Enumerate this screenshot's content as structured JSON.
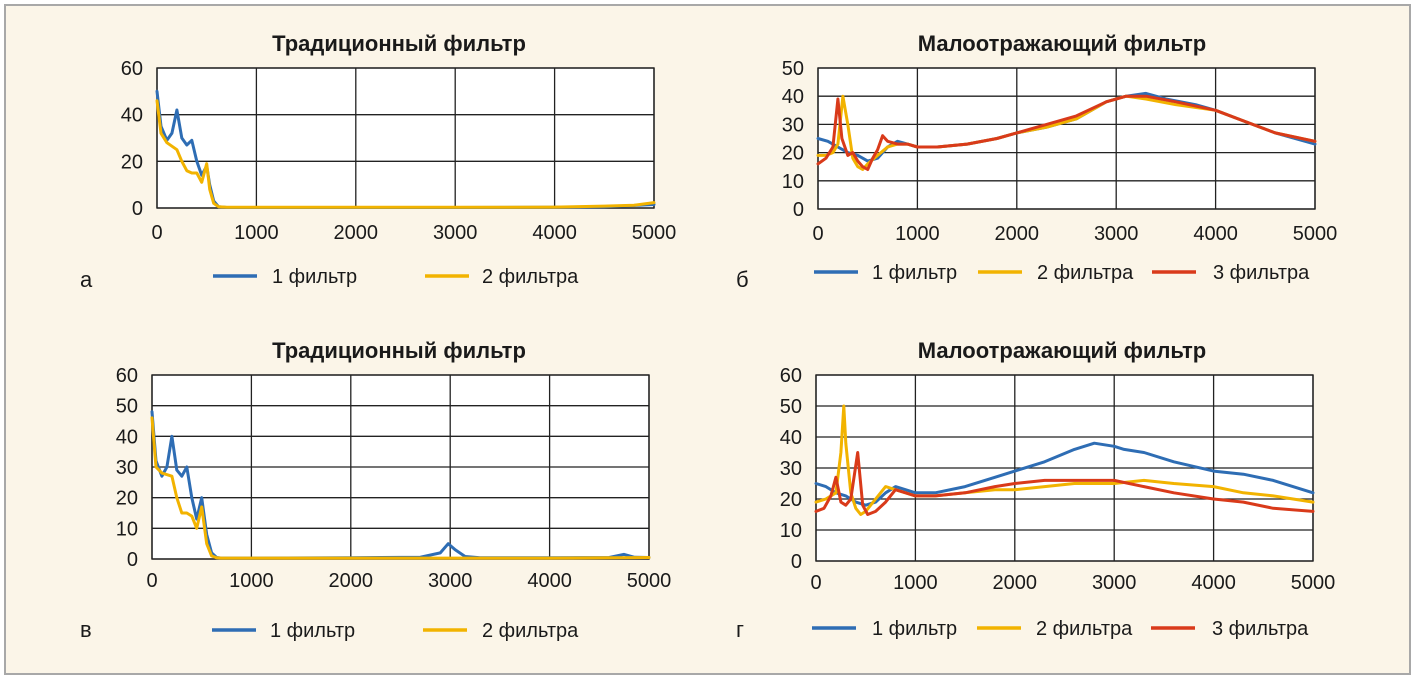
{
  "chart_data": [
    {
      "type": "line",
      "panel_letter": "а",
      "title": "Традиционный фильтр",
      "xlim": [
        0,
        5000
      ],
      "ylim": [
        0,
        60
      ],
      "xticks": [
        0,
        1000,
        2000,
        3000,
        4000,
        5000
      ],
      "yticks": [
        0,
        20,
        40,
        60
      ],
      "legend_position": "bottom",
      "series": [
        {
          "name": "1 фильтр",
          "color": "#2e6db4",
          "points": [
            [
              0,
              50
            ],
            [
              40,
              35
            ],
            [
              100,
              29
            ],
            [
              150,
              32
            ],
            [
              200,
              42
            ],
            [
              250,
              30
            ],
            [
              300,
              27
            ],
            [
              350,
              29
            ],
            [
              400,
              20
            ],
            [
              450,
              14
            ],
            [
              500,
              18
            ],
            [
              530,
              10
            ],
            [
              570,
              3
            ],
            [
              620,
              0.5
            ],
            [
              700,
              0.2
            ],
            [
              1000,
              0.2
            ],
            [
              2000,
              0.2
            ],
            [
              3000,
              0.2
            ],
            [
              4000,
              0.3
            ],
            [
              4500,
              0.5
            ],
            [
              5000,
              1.5
            ]
          ]
        },
        {
          "name": "2 фильтра",
          "color": "#f2b300",
          "points": [
            [
              0,
              46
            ],
            [
              40,
              32
            ],
            [
              100,
              28
            ],
            [
              200,
              25
            ],
            [
              250,
              20
            ],
            [
              300,
              16
            ],
            [
              350,
              15
            ],
            [
              400,
              15
            ],
            [
              450,
              11
            ],
            [
              500,
              19
            ],
            [
              530,
              8
            ],
            [
              570,
              2
            ],
            [
              620,
              0.5
            ],
            [
              700,
              0.3
            ],
            [
              1000,
              0.3
            ],
            [
              2000,
              0.3
            ],
            [
              3000,
              0.3
            ],
            [
              4000,
              0.4
            ],
            [
              4500,
              0.8
            ],
            [
              4800,
              1.2
            ],
            [
              5000,
              2.3
            ]
          ]
        }
      ]
    },
    {
      "type": "line",
      "panel_letter": "б",
      "title": "Малоотражающий фильтр",
      "xlim": [
        0,
        5000
      ],
      "ylim": [
        0,
        50
      ],
      "xticks": [
        0,
        1000,
        2000,
        3000,
        4000,
        5000
      ],
      "yticks": [
        0,
        10,
        20,
        30,
        40,
        50
      ],
      "legend_position": "bottom",
      "series": [
        {
          "name": "1 фильтр",
          "color": "#2e6db4",
          "points": [
            [
              0,
              25
            ],
            [
              100,
              24
            ],
            [
              200,
              22
            ],
            [
              300,
              20
            ],
            [
              400,
              19
            ],
            [
              450,
              18
            ],
            [
              500,
              17
            ],
            [
              600,
              18
            ],
            [
              700,
              22
            ],
            [
              800,
              24
            ],
            [
              900,
              23
            ],
            [
              1000,
              22
            ],
            [
              1200,
              22
            ],
            [
              1500,
              23
            ],
            [
              1800,
              25
            ],
            [
              2000,
              27
            ],
            [
              2300,
              29
            ],
            [
              2600,
              32
            ],
            [
              2900,
              38
            ],
            [
              3100,
              40
            ],
            [
              3300,
              41
            ],
            [
              3500,
              39
            ],
            [
              3800,
              37
            ],
            [
              4000,
              35
            ],
            [
              4300,
              31
            ],
            [
              4600,
              27
            ],
            [
              5000,
              23
            ]
          ]
        },
        {
          "name": "2 фильтра",
          "color": "#f2b300",
          "points": [
            [
              0,
              19
            ],
            [
              80,
              19
            ],
            [
              150,
              20
            ],
            [
              200,
              23
            ],
            [
              250,
              40
            ],
            [
              300,
              30
            ],
            [
              350,
              18
            ],
            [
              400,
              15
            ],
            [
              450,
              14
            ],
            [
              500,
              16
            ],
            [
              600,
              19
            ],
            [
              700,
              22
            ],
            [
              800,
              23
            ],
            [
              900,
              23
            ],
            [
              1000,
              22
            ],
            [
              1200,
              22
            ],
            [
              1500,
              23
            ],
            [
              1800,
              25
            ],
            [
              2000,
              27
            ],
            [
              2300,
              29
            ],
            [
              2600,
              32
            ],
            [
              2900,
              38
            ],
            [
              3100,
              40
            ],
            [
              3300,
              39
            ],
            [
              3600,
              37
            ],
            [
              4000,
              35
            ],
            [
              4300,
              31
            ],
            [
              4600,
              27
            ],
            [
              5000,
              24
            ]
          ]
        },
        {
          "name": "3 фильтра",
          "color": "#d93a1a",
          "points": [
            [
              0,
              16
            ],
            [
              80,
              18
            ],
            [
              150,
              22
            ],
            [
              200,
              39
            ],
            [
              240,
              25
            ],
            [
              300,
              19
            ],
            [
              350,
              20
            ],
            [
              400,
              17
            ],
            [
              450,
              15
            ],
            [
              500,
              14
            ],
            [
              550,
              18
            ],
            [
              600,
              21
            ],
            [
              650,
              26
            ],
            [
              700,
              24
            ],
            [
              800,
              23
            ],
            [
              900,
              23
            ],
            [
              1000,
              22
            ],
            [
              1200,
              22
            ],
            [
              1500,
              23
            ],
            [
              1800,
              25
            ],
            [
              2000,
              27
            ],
            [
              2300,
              30
            ],
            [
              2600,
              33
            ],
            [
              2900,
              38
            ],
            [
              3100,
              40
            ],
            [
              3300,
              40
            ],
            [
              3600,
              38
            ],
            [
              4000,
              35
            ],
            [
              4300,
              31
            ],
            [
              4600,
              27
            ],
            [
              5000,
              24
            ]
          ]
        }
      ]
    },
    {
      "type": "line",
      "panel_letter": "в",
      "title": "Традиционный фильтр",
      "xlim": [
        0,
        5000
      ],
      "ylim": [
        0,
        60
      ],
      "xticks": [
        0,
        1000,
        2000,
        3000,
        4000,
        5000
      ],
      "yticks": [
        0,
        10,
        20,
        30,
        40,
        50,
        60
      ],
      "legend_position": "bottom",
      "series": [
        {
          "name": "1 фильтр",
          "color": "#2e6db4",
          "points": [
            [
              0,
              48
            ],
            [
              40,
              32
            ],
            [
              100,
              27
            ],
            [
              150,
              30
            ],
            [
              200,
              40
            ],
            [
              250,
              29
            ],
            [
              300,
              27
            ],
            [
              350,
              30
            ],
            [
              400,
              20
            ],
            [
              450,
              13
            ],
            [
              500,
              20
            ],
            [
              550,
              8
            ],
            [
              600,
              2
            ],
            [
              650,
              0.5
            ],
            [
              700,
              0.3
            ],
            [
              1000,
              0.3
            ],
            [
              2000,
              0.4
            ],
            [
              2700,
              0.6
            ],
            [
              2900,
              2
            ],
            [
              2980,
              5
            ],
            [
              3050,
              3
            ],
            [
              3150,
              0.8
            ],
            [
              3300,
              0.4
            ],
            [
              4000,
              0.4
            ],
            [
              4600,
              0.5
            ],
            [
              4750,
              1.5
            ],
            [
              4850,
              0.6
            ],
            [
              5000,
              0.5
            ]
          ]
        },
        {
          "name": "2 фильтра",
          "color": "#f2b300",
          "points": [
            [
              0,
              46
            ],
            [
              40,
              30
            ],
            [
              100,
              28
            ],
            [
              200,
              27
            ],
            [
              250,
              20
            ],
            [
              300,
              15
            ],
            [
              350,
              15
            ],
            [
              400,
              14
            ],
            [
              450,
              10
            ],
            [
              500,
              17
            ],
            [
              550,
              5
            ],
            [
              600,
              1
            ],
            [
              650,
              0.4
            ],
            [
              700,
              0.3
            ],
            [
              1000,
              0.3
            ],
            [
              2000,
              0.3
            ],
            [
              3000,
              0.3
            ],
            [
              4000,
              0.3
            ],
            [
              5000,
              0.5
            ]
          ]
        }
      ]
    },
    {
      "type": "line",
      "panel_letter": "г",
      "title": "Малоотражающий фильтр",
      "xlim": [
        0,
        5000
      ],
      "ylim": [
        0,
        60
      ],
      "xticks": [
        0,
        1000,
        2000,
        3000,
        4000,
        5000
      ],
      "yticks": [
        0,
        10,
        20,
        30,
        40,
        50,
        60
      ],
      "legend_position": "bottom",
      "series": [
        {
          "name": "1 фильтр",
          "color": "#2e6db4",
          "points": [
            [
              0,
              25
            ],
            [
              100,
              24
            ],
            [
              200,
              22
            ],
            [
              300,
              21
            ],
            [
              400,
              19
            ],
            [
              500,
              18
            ],
            [
              600,
              19
            ],
            [
              700,
              22
            ],
            [
              800,
              24
            ],
            [
              900,
              23
            ],
            [
              1000,
              22
            ],
            [
              1200,
              22
            ],
            [
              1500,
              24
            ],
            [
              1800,
              27
            ],
            [
              2000,
              29
            ],
            [
              2300,
              32
            ],
            [
              2600,
              36
            ],
            [
              2800,
              38
            ],
            [
              3000,
              37
            ],
            [
              3100,
              36
            ],
            [
              3300,
              35
            ],
            [
              3600,
              32
            ],
            [
              4000,
              29
            ],
            [
              4300,
              28
            ],
            [
              4600,
              26
            ],
            [
              5000,
              22
            ]
          ]
        },
        {
          "name": "2 фильтра",
          "color": "#f2b300",
          "points": [
            [
              0,
              19
            ],
            [
              100,
              20
            ],
            [
              200,
              22
            ],
            [
              250,
              35
            ],
            [
              280,
              50
            ],
            [
              300,
              38
            ],
            [
              350,
              22
            ],
            [
              400,
              17
            ],
            [
              450,
              15
            ],
            [
              500,
              16
            ],
            [
              600,
              20
            ],
            [
              700,
              24
            ],
            [
              800,
              23
            ],
            [
              900,
              22
            ],
            [
              1000,
              21
            ],
            [
              1200,
              21
            ],
            [
              1500,
              22
            ],
            [
              1800,
              23
            ],
            [
              2000,
              23
            ],
            [
              2300,
              24
            ],
            [
              2600,
              25
            ],
            [
              3000,
              25
            ],
            [
              3300,
              26
            ],
            [
              3600,
              25
            ],
            [
              4000,
              24
            ],
            [
              4300,
              22
            ],
            [
              4600,
              21
            ],
            [
              5000,
              19
            ]
          ]
        },
        {
          "name": "3 фильтра",
          "color": "#d93a1a",
          "points": [
            [
              0,
              16
            ],
            [
              80,
              17
            ],
            [
              150,
              21
            ],
            [
              200,
              27
            ],
            [
              250,
              19
            ],
            [
              300,
              18
            ],
            [
              350,
              20
            ],
            [
              420,
              35
            ],
            [
              470,
              18
            ],
            [
              520,
              15
            ],
            [
              600,
              16
            ],
            [
              700,
              19
            ],
            [
              800,
              23
            ],
            [
              900,
              22
            ],
            [
              1000,
              21
            ],
            [
              1200,
              21
            ],
            [
              1500,
              22
            ],
            [
              1800,
              24
            ],
            [
              2000,
              25
            ],
            [
              2300,
              26
            ],
            [
              2600,
              26
            ],
            [
              3000,
              26
            ],
            [
              3300,
              24
            ],
            [
              3600,
              22
            ],
            [
              4000,
              20
            ],
            [
              4300,
              19
            ],
            [
              4600,
              17
            ],
            [
              5000,
              16
            ]
          ]
        }
      ]
    }
  ]
}
